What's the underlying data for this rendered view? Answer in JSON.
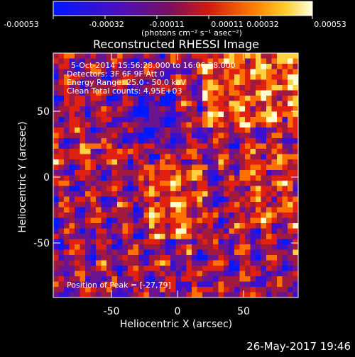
{
  "colorbar": {
    "tick_labels": [
      "-0.00053",
      "-0.00032",
      "-0.00011",
      "0.00011",
      "0.00032",
      "0.00053"
    ],
    "units_label": "(photons cm⁻² s⁻¹ asec⁻²)",
    "colors": [
      "#0018ff",
      "#3a10d0",
      "#6a1490",
      "#a01a40",
      "#e02010",
      "#ff7000",
      "#ffd040",
      "#ffffd0"
    ]
  },
  "image": {
    "title": "Reconstructed RHESSI Image",
    "xlabel": "Heliocentric X (arcsec)",
    "ylabel": "Heliocentric Y (arcsec)",
    "x_ticks": [
      "-50",
      "0",
      "50"
    ],
    "y_ticks": [
      "50",
      "0",
      "-50"
    ],
    "info_lines": [
      "5-Oct-2014 15:56:28.000 to 16:06:28.000",
      "Detectors: 3F 6F 9F  Att 0",
      "Energy Range: 25.0 - 50.0 keV",
      "Clean    Total counts: 4.95E+03"
    ],
    "peak_label": "Position of Peak = [-27,79]"
  },
  "footer": {
    "timestamp": "26-May-2017 19:46"
  }
}
